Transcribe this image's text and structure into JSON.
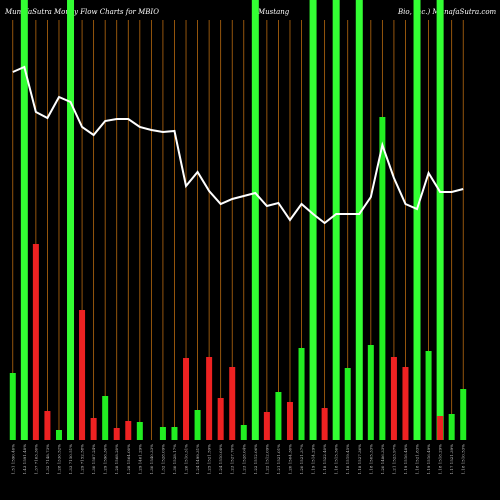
{
  "chart_data": {
    "type": "bar",
    "title_parts": [
      "MunafaSutra  Money Flow  Charts for MBIO",
      "Mustang",
      "Bio, Inc.) MunafaSutra.com"
    ],
    "categories": [
      "1.51 1590.46%",
      "1.43 1591.48%",
      "1.37 7163.30%",
      "1.32 7148.73%",
      "1.28 1336.52%",
      "1.33 7150.51%",
      "1.29 7152.58%",
      "1.30 1587.24%",
      "1.29 1596.36%",
      "1.28 1568.20%",
      "1.28 1564.00%",
      "1.29 1461.29%",
      "1.30 1540.33%",
      "1.32 1528.09%",
      "1.30 1528.17%",
      "1.26 1510.31%",
      "1.24 1499.31%",
      "1.25 1521.59%",
      "1.24 1510.08%",
      "1.23 1527.70%",
      "1.23 1528.04%",
      "1.22 1512.06%",
      "1.22 1512.09%",
      "1.21 1521.01%",
      "1.20 1504.30%",
      "1.20 1521.37%",
      "1.19 1514.29%",
      "1.18 1522.40%",
      "1.18 1515.56%",
      "1.18 1519.45%",
      "1.18 1527.36%",
      "1.18 1505.33%",
      "1.20 1486.33%",
      "1.21 1523.97%",
      "1.19 1516.48%",
      "1.18 1521.83%",
      "1.19 1516.49%",
      "1.18 1518.29%",
      "1.17 1521.39%",
      "1.18 1510.53%"
    ],
    "values": [
      67,
      0,
      196,
      29,
      10,
      0,
      130,
      22,
      44,
      12,
      19,
      18,
      0,
      13,
      13,
      82,
      30,
      83,
      42,
      73,
      15,
      0,
      28,
      48,
      38,
      92,
      0,
      32,
      0,
      72,
      0,
      95,
      323,
      83,
      73,
      0,
      89,
      24,
      26,
      51
    ],
    "colors": [
      "#22ee22",
      "#22ee22",
      "#ee2222",
      "#ee2222",
      "#22ee22",
      "#22ee22",
      "#ee2222",
      "#ee2222",
      "#22ee22",
      "#ee2222",
      "#ee2222",
      "#22ee22",
      "#22ee22",
      "#22ee22",
      "#22ee22",
      "#ee2222",
      "#22ee22",
      "#ee2222",
      "#ee2222",
      "#ee2222",
      "#22ee22",
      "#22ee22",
      "#ee2222",
      "#22ee22",
      "#ee2222",
      "#22ee22",
      "#22ee22",
      "#ee2222",
      "#22ee22",
      "#22ee22",
      "#22ee22",
      "#22ee22",
      "#22ee22",
      "#ee2222",
      "#ee2222",
      "#22ee22",
      "#22ee22",
      "#ee2222",
      "#22ee22",
      "#22ee22"
    ],
    "highlight": [
      false,
      true,
      false,
      false,
      false,
      true,
      false,
      false,
      false,
      false,
      false,
      false,
      false,
      false,
      false,
      false,
      false,
      false,
      false,
      false,
      false,
      true,
      false,
      false,
      false,
      false,
      true,
      false,
      true,
      false,
      true,
      false,
      false,
      false,
      false,
      true,
      false,
      true,
      false,
      false
    ],
    "highlight_color": "#33ff33",
    "line": {
      "color": "#ffffff",
      "values": [
        368,
        373,
        328,
        322,
        343,
        338,
        313,
        305,
        319,
        321,
        321,
        313,
        310,
        308,
        309,
        254,
        268,
        249,
        236,
        241,
        244,
        247,
        234,
        237,
        220,
        236,
        226,
        217,
        226,
        226,
        226,
        243,
        295,
        262,
        236,
        231,
        267,
        248,
        248,
        251
      ]
    },
    "ylim": [
      0,
      440
    ],
    "grid_color": "#b86a10"
  }
}
